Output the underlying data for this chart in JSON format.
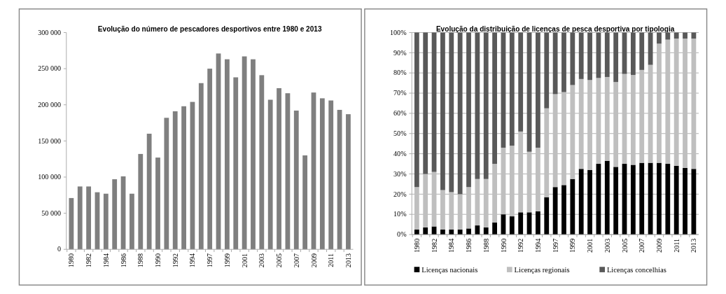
{
  "chart_data": [
    {
      "type": "bar",
      "title": "Evolução do número de pescadores desportivos entre 1980 e 2013",
      "categories": [
        "1980",
        null,
        "1982",
        null,
        "1984",
        null,
        "1986",
        null,
        "1988",
        null,
        "1990",
        null,
        "1992",
        null,
        "1994",
        null,
        "1997",
        null,
        "1999",
        null,
        "2001",
        null,
        "2003",
        null,
        "2005",
        null,
        "2007",
        null,
        "2009",
        null,
        "2011",
        null,
        "2013"
      ],
      "values": [
        71000,
        87000,
        87000,
        79000,
        77000,
        97000,
        101000,
        77000,
        132000,
        160000,
        127000,
        182000,
        191000,
        198000,
        204000,
        230000,
        250000,
        271000,
        263000,
        238000,
        267000,
        263000,
        241000,
        207000,
        223000,
        216000,
        192000,
        130000,
        217000,
        209000,
        206000,
        193000,
        187000
      ],
      "color": "#7f7f7f",
      "ylim": [
        0,
        300000
      ],
      "yticks": [
        0,
        {
          "value": 50000,
          "label": "50 000"
        },
        {
          "value": 100000,
          "label": "100 000"
        },
        {
          "value": 150000,
          "label": "150 000"
        },
        {
          "value": 200000,
          "label": "200 000"
        },
        {
          "value": 250000,
          "label": "250 000"
        },
        {
          "value": 300000,
          "label": "300 000"
        }
      ],
      "grid": false,
      "legend": false
    },
    {
      "type": "bar",
      "title": "Evolução da distribuição de licenças de pesca desportiva por tipologia",
      "stacked": true,
      "categories": [
        "1980",
        null,
        "1982",
        null,
        "1984",
        null,
        "1986",
        null,
        "1988",
        null,
        "1990",
        null,
        "1992",
        null,
        "1994",
        null,
        "1997",
        null,
        "1999",
        null,
        "2001",
        null,
        "2003",
        null,
        "2005",
        null,
        "2007",
        null,
        "2009",
        null,
        "2011",
        null,
        "2013"
      ],
      "series": [
        {
          "name": "Licenças nacionais",
          "color": "#000000",
          "values": [
            2.5,
            3.5,
            4,
            2.5,
            2.5,
            2.5,
            3,
            4.5,
            3.5,
            6,
            10,
            9,
            11,
            11,
            11.5,
            18.5,
            23.5,
            24.5,
            27.5,
            32.5,
            32,
            35,
            36.5,
            33.5,
            35,
            34.5,
            35.5,
            35.5,
            35.5,
            35,
            34,
            33,
            32.5
          ]
        },
        {
          "name": "Licenças regionais",
          "color": "#bfbfbf",
          "values": [
            21,
            26.5,
            27,
            19.5,
            18.5,
            17.5,
            20.5,
            23,
            24,
            29,
            33,
            35,
            40,
            30,
            31.5,
            44,
            46,
            46,
            46.5,
            44.5,
            44.5,
            42.5,
            41.5,
            42,
            44.5,
            44.5,
            46,
            48.5,
            59,
            61.5,
            63,
            64,
            64.5
          ]
        },
        {
          "name": "Licenças concelhias",
          "color": "#595959",
          "values": [
            76.5,
            70,
            69,
            78,
            79,
            80,
            76.5,
            72.5,
            72.5,
            65,
            57,
            56,
            49,
            59,
            57,
            37.5,
            30.5,
            29.5,
            26,
            23,
            23.5,
            22.5,
            22,
            24.5,
            20.5,
            21,
            18.5,
            16,
            5.5,
            3.5,
            3,
            3,
            3
          ]
        }
      ],
      "ylim": [
        0,
        100
      ],
      "yticks": [
        {
          "value": 0,
          "label": "0%"
        },
        {
          "value": 10,
          "label": "10%"
        },
        {
          "value": 20,
          "label": "20%"
        },
        {
          "value": 30,
          "label": "30%"
        },
        {
          "value": 40,
          "label": "40%"
        },
        {
          "value": 50,
          "label": "50%"
        },
        {
          "value": 60,
          "label": "60%"
        },
        {
          "value": 70,
          "label": "70%"
        },
        {
          "value": 80,
          "label": "80%"
        },
        {
          "value": 90,
          "label": "90%"
        },
        {
          "value": 100,
          "label": "100%"
        }
      ],
      "grid": "y",
      "legend": "bottom"
    }
  ]
}
